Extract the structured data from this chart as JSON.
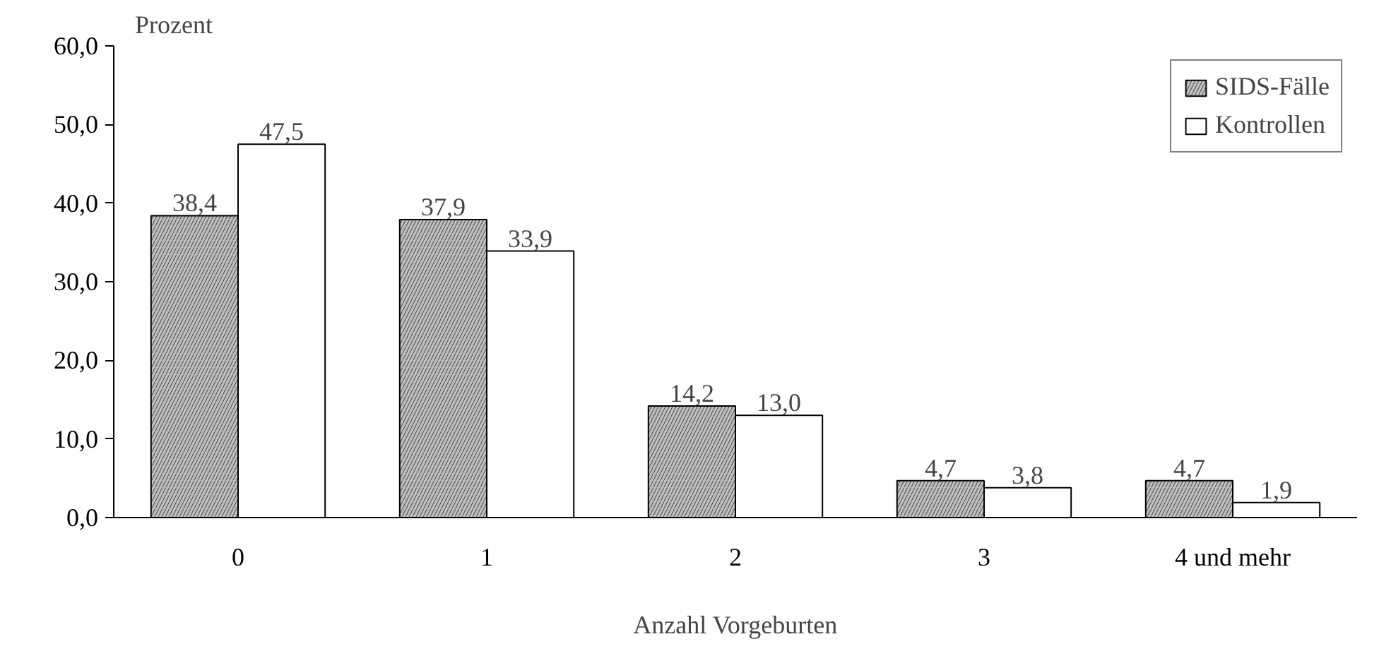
{
  "chart_data": {
    "type": "bar",
    "ylabel": "Prozent",
    "xlabel": "Anzahl Vorgeburten",
    "categories": [
      "0",
      "1",
      "2",
      "3",
      "4 und mehr"
    ],
    "series": [
      {
        "name": "SIDS-Fälle",
        "color": "#c0c0c0",
        "values": [
          38.4,
          37.9,
          14.2,
          4.7,
          4.7
        ],
        "value_labels": [
          "38,4",
          "37,9",
          "14,2",
          "4,7",
          "4,7"
        ]
      },
      {
        "name": "Kontrollen",
        "color": "#ffffff",
        "values": [
          47.5,
          33.9,
          13.0,
          3.8,
          1.9
        ],
        "value_labels": [
          "47,5",
          "33,9",
          "13,0",
          "3,8",
          "1,9"
        ]
      }
    ],
    "ylim": [
      0,
      60
    ],
    "yticks": [
      {
        "value": 0,
        "label": "0,0"
      },
      {
        "value": 10,
        "label": "10,0"
      },
      {
        "value": 20,
        "label": "20,0"
      },
      {
        "value": 30,
        "label": "30,0"
      },
      {
        "value": 40,
        "label": "40,0"
      },
      {
        "value": 50,
        "label": "50,0"
      },
      {
        "value": 60,
        "label": "60,0"
      }
    ],
    "grid": false,
    "legend": "top right"
  }
}
